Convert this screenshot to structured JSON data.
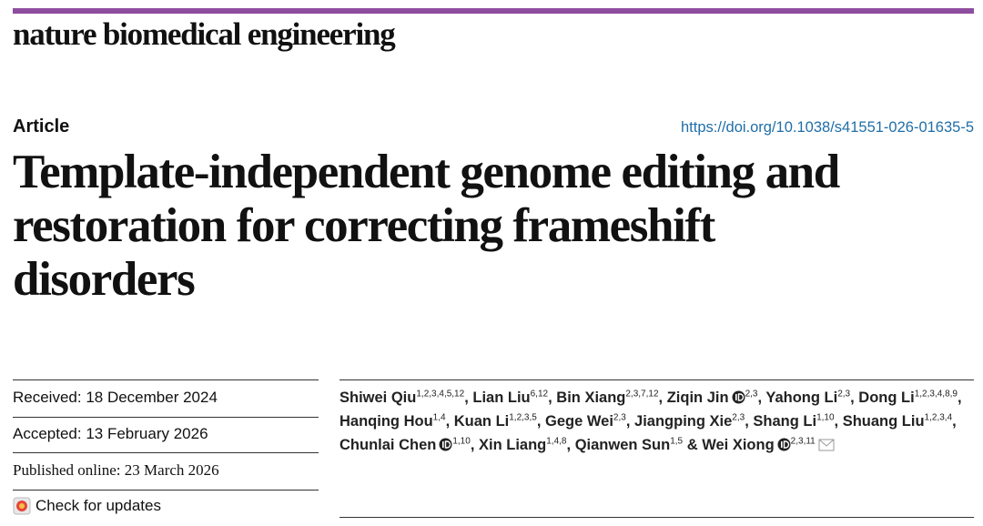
{
  "journal": "nature biomedical engineering",
  "article_type": "Article",
  "doi": "https://doi.org/10.1038/s41551-026-01635-5",
  "title": "Template-independent genome editing and restoration for correcting frameshift disorders",
  "dates": {
    "received": "Received: 18 December 2024",
    "accepted": "Accepted: 13 February 2026",
    "published": "Published online: 23 March 2026"
  },
  "check_updates": "Check for updates",
  "authors": [
    {
      "name": "Shiwei Qiu",
      "affiliations": "1,2,3,4,5,12",
      "orcid": false,
      "separator": ","
    },
    {
      "name": "Lian Liu",
      "affiliations": "6,12",
      "orcid": false,
      "separator": ","
    },
    {
      "name": "Bin Xiang",
      "affiliations": "2,3,7,12",
      "orcid": false,
      "separator": ","
    },
    {
      "name": "Ziqin Jin",
      "affiliations": "2,3",
      "orcid": true,
      "separator": ","
    },
    {
      "name": "Yahong Li",
      "affiliations": "2,3",
      "orcid": false,
      "separator": ","
    },
    {
      "name": "Dong Li",
      "affiliations": "1,2,3,4,8,9",
      "orcid": false,
      "separator": ","
    },
    {
      "name": "Hanqing Hou",
      "affiliations": "1,4",
      "orcid": false,
      "separator": ","
    },
    {
      "name": "Kuan Li",
      "affiliations": "1,2,3,5",
      "orcid": false,
      "separator": ","
    },
    {
      "name": "Gege Wei",
      "affiliations": "2,3",
      "orcid": false,
      "separator": ","
    },
    {
      "name": "Jiangping Xie",
      "affiliations": "2,3",
      "orcid": false,
      "separator": ","
    },
    {
      "name": "Shang Li",
      "affiliations": "1,10",
      "orcid": false,
      "separator": ","
    },
    {
      "name": "Shuang Liu",
      "affiliations": "1,2,3,4",
      "orcid": false,
      "separator": ","
    },
    {
      "name": "Chunlai Chen",
      "affiliations": "1,10",
      "orcid": true,
      "separator": ","
    },
    {
      "name": "Xin Liang",
      "affiliations": "1,4,8",
      "orcid": false,
      "separator": ","
    },
    {
      "name": "Qianwen Sun",
      "affiliations": "1,5",
      "orcid": false,
      "separator": "&"
    },
    {
      "name": "Wei Xiong",
      "affiliations": "2,3,11",
      "orcid": true,
      "corresponding": true
    }
  ]
}
